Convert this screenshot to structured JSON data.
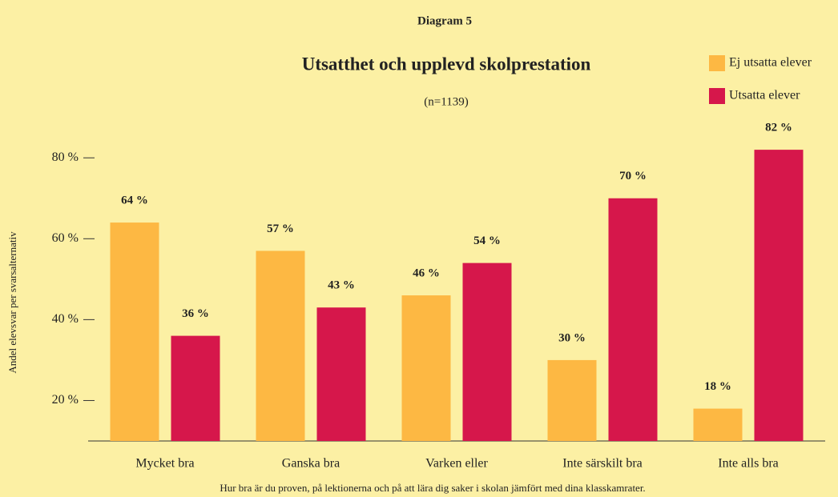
{
  "chart_data": {
    "type": "bar",
    "label": "Diagram 5",
    "title": "Utsatthet och upplevd skolprestation",
    "subtitle": "(n=1139)",
    "y_label": "Andel elevsvar per svarsalternativ",
    "x_label": "Hur bra är du proven, på lektionerna och på att lära dig saker i skolan jämfört med dina klasskamrater.",
    "categories": [
      "Mycket bra",
      "Ganska bra",
      "Varken eller",
      "Inte särskilt bra",
      "Inte alls bra"
    ],
    "series": [
      {
        "name": "Ej utsatta elever",
        "color": "#fdb843",
        "values": [
          64,
          57,
          46,
          30,
          18
        ],
        "value_labels": [
          "64 %",
          "57 %",
          "46 %",
          "30 %",
          "18 %"
        ]
      },
      {
        "name": "Utsatta elever",
        "color": "#d6174b",
        "values": [
          36,
          43,
          54,
          70,
          82
        ],
        "value_labels": [
          "36 %",
          "43 %",
          "54 %",
          "70 %",
          "82 %"
        ]
      }
    ],
    "ylim": [
      10,
      84
    ],
    "yticks": [
      {
        "value": 20,
        "label": "20 %"
      },
      {
        "value": 40,
        "label": "40 %"
      },
      {
        "value": 60,
        "label": "60 %"
      },
      {
        "value": 80,
        "label": "80 %"
      }
    ],
    "legend": "top-right"
  }
}
